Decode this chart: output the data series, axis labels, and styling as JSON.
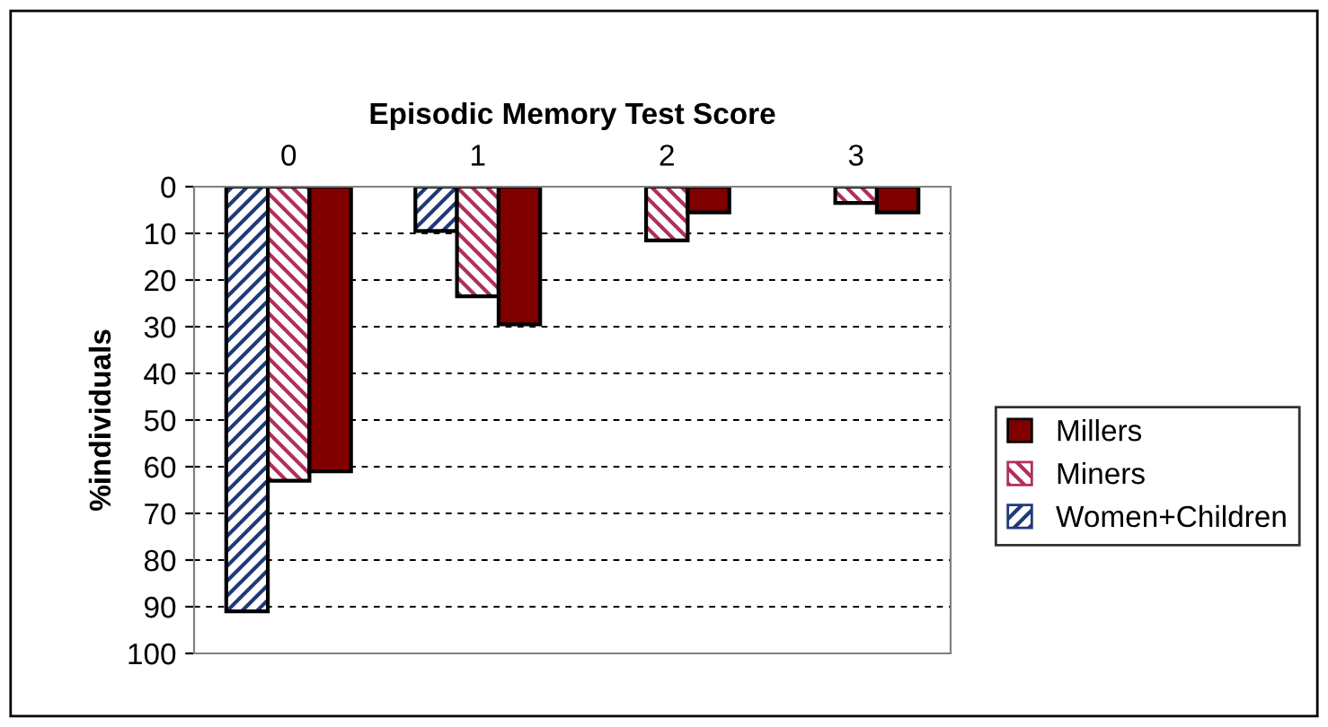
{
  "chart_data": {
    "type": "bar",
    "xlabel": "Episodic Memory Test Score",
    "ylabel": "%individuals",
    "categories": [
      "0",
      "1",
      "2",
      "3"
    ],
    "series": [
      {
        "name": "Women+Children",
        "color": "#1f3a7a",
        "values": [
          91,
          9.5,
          0,
          0
        ]
      },
      {
        "name": "Miners",
        "color": "#b0305a",
        "values": [
          63,
          23.5,
          11.5,
          3.5
        ]
      },
      {
        "name": "Millers",
        "color": "#800000",
        "values": [
          61,
          29.5,
          5.5,
          5.5
        ]
      }
    ],
    "ylim": [
      100,
      0
    ],
    "yticks": [
      0,
      10,
      20,
      30,
      40,
      50,
      60,
      70,
      80,
      90,
      100
    ],
    "grid": "y",
    "legend": "right"
  }
}
